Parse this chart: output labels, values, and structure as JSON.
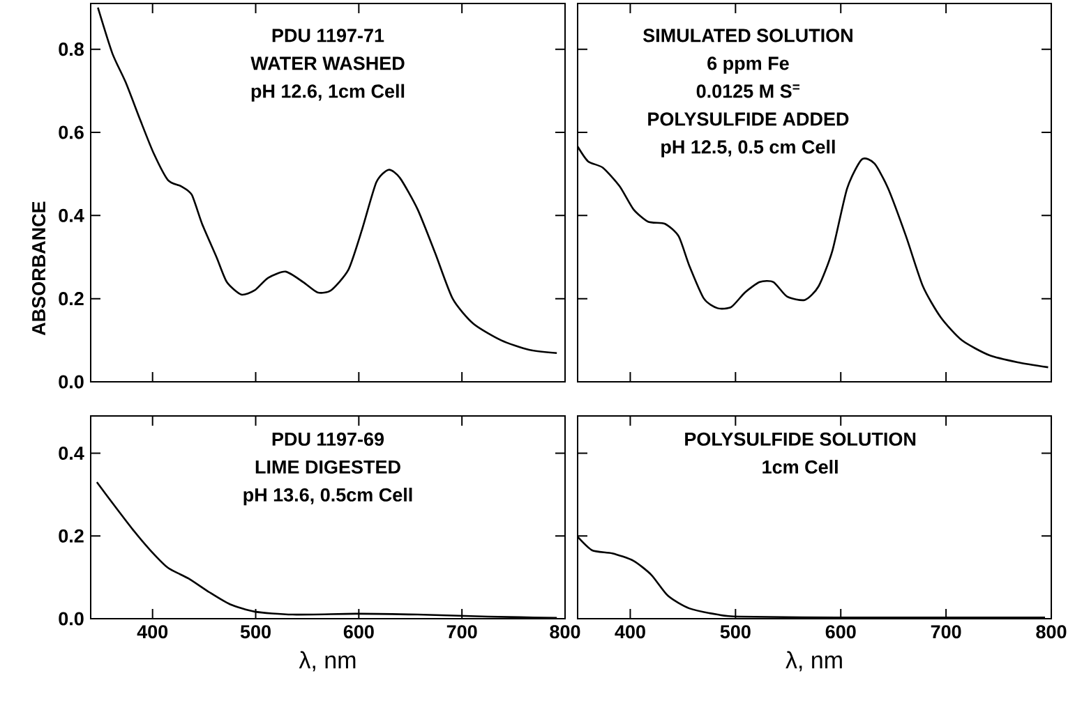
{
  "chart_data": [
    {
      "type": "line",
      "ylabel": "ABSORBANCE",
      "annotations": [
        "PDU 1197-71",
        "WATER WASHED",
        "pH 12.6, 1cm Cell"
      ],
      "color": "#000000",
      "x": [
        347,
        361,
        374,
        388,
        401,
        415,
        428,
        438,
        448,
        462,
        472,
        486,
        499,
        512,
        529,
        546,
        560,
        573,
        590,
        603,
        617,
        629,
        640,
        657,
        674,
        691,
        711,
        738,
        765,
        792
      ],
      "values": [
        0.9,
        0.79,
        0.72,
        0.63,
        0.55,
        0.485,
        0.47,
        0.45,
        0.38,
        0.3,
        0.24,
        0.21,
        0.22,
        0.25,
        0.265,
        0.24,
        0.215,
        0.22,
        0.27,
        0.365,
        0.48,
        0.51,
        0.49,
        0.415,
        0.31,
        0.2,
        0.14,
        0.1,
        0.077,
        0.069
      ],
      "xlim": [
        340,
        800
      ],
      "ylim": [
        0,
        0.91
      ],
      "xticks": [
        {
          "value": 400,
          "label": null
        },
        {
          "value": 500,
          "label": null
        },
        {
          "value": 600,
          "label": null
        },
        {
          "value": 700,
          "label": null
        },
        {
          "value": 800,
          "label": null
        }
      ],
      "yticks": [
        {
          "value": 0,
          "label": "0.0"
        },
        0.2,
        0.4,
        0.6,
        0.8
      ],
      "tick_labels": "y"
    },
    {
      "type": "line",
      "annotations": [
        "SIMULATED SOLUTION",
        "6 ppm Fe",
        "0.0125 M S$^{=}$",
        "POLYSULFIDE ADDED",
        "pH 12.5, 0.5 cm Cell"
      ],
      "color": "#000000",
      "x": [
        350,
        360,
        374,
        390,
        403,
        417,
        433,
        446,
        456,
        470,
        483,
        496,
        509,
        523,
        536,
        549,
        566,
        579,
        592,
        606,
        620,
        632,
        645,
        662,
        678,
        695,
        715,
        741,
        768,
        797
      ],
      "values": [
        0.566,
        0.53,
        0.515,
        0.47,
        0.415,
        0.385,
        0.38,
        0.35,
        0.28,
        0.2,
        0.177,
        0.18,
        0.215,
        0.24,
        0.24,
        0.205,
        0.197,
        0.23,
        0.315,
        0.465,
        0.535,
        0.525,
        0.465,
        0.35,
        0.23,
        0.155,
        0.1,
        0.064,
        0.047,
        0.035
      ],
      "xlim": [
        350,
        800
      ],
      "ylim": [
        0,
        0.91
      ],
      "xticks": [
        {
          "value": 400,
          "label": null
        },
        {
          "value": 500,
          "label": null
        },
        {
          "value": 600,
          "label": null
        },
        {
          "value": 700,
          "label": null
        },
        {
          "value": 800,
          "label": null
        }
      ],
      "yticks": [
        {
          "value": 0,
          "label": null
        },
        {
          "value": 0.2,
          "label": null
        },
        {
          "value": 0.4,
          "label": null
        },
        {
          "value": 0.6,
          "label": null
        },
        {
          "value": 0.8,
          "label": null
        }
      ],
      "tick_labels": false
    },
    {
      "type": "line",
      "xlabel": "λ, nm",
      "annotations": [
        "PDU 1197-69",
        "LIME DIGESTED",
        "pH 13.6, 0.5cm Cell"
      ],
      "color": "#000000",
      "x": [
        346,
        361,
        381,
        398,
        415,
        435,
        455,
        475,
        499,
        536,
        600,
        657,
        725,
        792
      ],
      "values": [
        0.33,
        0.28,
        0.215,
        0.165,
        0.123,
        0.097,
        0.064,
        0.035,
        0.017,
        0.01,
        0.012,
        0.01,
        0.005,
        0.002
      ],
      "xlim": [
        340,
        800
      ],
      "ylim": [
        0,
        0.49
      ],
      "xticks": [
        400,
        500,
        600,
        700,
        800
      ],
      "yticks": [
        {
          "value": 0,
          "label": "0.0"
        },
        0.2,
        0.4
      ]
    },
    {
      "type": "line",
      "xlabel": "λ, nm",
      "annotations": [
        "POLYSULFIDE SOLUTION",
        "1cm Cell"
      ],
      "color": "#000000",
      "x": [
        350,
        364,
        383,
        403,
        420,
        436,
        456,
        483,
        503,
        596,
        794
      ],
      "values": [
        0.198,
        0.165,
        0.158,
        0.14,
        0.106,
        0.055,
        0.025,
        0.01,
        0.005,
        0.003,
        0.003
      ],
      "xlim": [
        350,
        800
      ],
      "ylim": [
        0,
        0.49
      ],
      "xticks": [
        400,
        500,
        600,
        700,
        800
      ],
      "yticks": [
        {
          "value": 0,
          "label": null
        },
        {
          "value": 0.2,
          "label": null
        },
        {
          "value": 0.4,
          "label": null
        }
      ],
      "tick_labels": "x"
    }
  ]
}
